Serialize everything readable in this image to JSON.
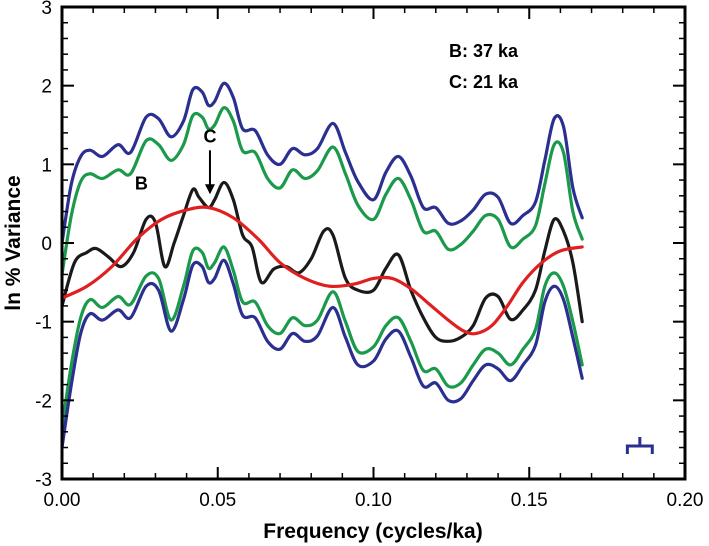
{
  "chart_data": {
    "type": "line",
    "xlabel": "Frequency (cycles/ka)",
    "ylabel": "ln % Variance",
    "xlim": [
      0.0,
      0.2
    ],
    "ylim": [
      -3,
      3
    ],
    "x_ticks": [
      "0.00",
      "0.05",
      "0.10",
      "0.15",
      "0.20"
    ],
    "y_ticks": [
      "-3",
      "-2",
      "-1",
      "0",
      "1",
      "2",
      "3"
    ],
    "grid": false,
    "legend": [
      "B: 37 ka",
      "C: 21 ka"
    ],
    "annotations": [
      {
        "text": "B",
        "x": 0.0255,
        "y": 0.68
      },
      {
        "text": "C",
        "x": 0.0475,
        "y": 1.28
      }
    ],
    "colors": {
      "spectrum": "#1a1a1a",
      "inner_band": "#1a9a4a",
      "outer_band": "#2b2f8f",
      "smooth": "#e02020"
    },
    "series": [
      {
        "role": "outer-upper",
        "x": [
          0.0,
          0.003,
          0.006,
          0.009,
          0.013,
          0.018,
          0.022,
          0.027,
          0.031,
          0.035,
          0.039,
          0.042,
          0.045,
          0.047,
          0.049,
          0.052,
          0.055,
          0.058,
          0.062,
          0.066,
          0.07,
          0.074,
          0.078,
          0.082,
          0.087,
          0.091,
          0.095,
          0.1,
          0.104,
          0.108,
          0.112,
          0.116,
          0.12,
          0.124,
          0.128,
          0.132,
          0.136,
          0.14,
          0.144,
          0.148,
          0.152,
          0.155,
          0.158,
          0.161,
          0.164,
          0.167
        ],
        "y": [
          0.0,
          0.75,
          1.1,
          1.18,
          1.1,
          1.25,
          1.15,
          1.6,
          1.58,
          1.35,
          1.55,
          1.95,
          1.92,
          1.75,
          1.8,
          2.03,
          1.85,
          1.45,
          1.43,
          1.12,
          1.0,
          1.2,
          1.12,
          1.2,
          1.52,
          1.15,
          0.78,
          0.55,
          0.9,
          1.1,
          0.85,
          0.45,
          0.45,
          0.25,
          0.28,
          0.42,
          0.62,
          0.58,
          0.25,
          0.35,
          0.52,
          1.05,
          1.58,
          1.48,
          0.7,
          0.32
        ]
      },
      {
        "role": "inner-upper",
        "x": [
          0.0,
          0.003,
          0.006,
          0.009,
          0.013,
          0.018,
          0.022,
          0.027,
          0.031,
          0.035,
          0.039,
          0.042,
          0.045,
          0.047,
          0.049,
          0.052,
          0.055,
          0.058,
          0.062,
          0.066,
          0.07,
          0.074,
          0.078,
          0.082,
          0.087,
          0.091,
          0.095,
          0.1,
          0.104,
          0.108,
          0.112,
          0.116,
          0.12,
          0.124,
          0.128,
          0.132,
          0.136,
          0.14,
          0.144,
          0.148,
          0.152,
          0.155,
          0.158,
          0.161,
          0.164,
          0.167
        ],
        "y": [
          -0.4,
          0.35,
          0.78,
          0.88,
          0.82,
          0.93,
          0.88,
          1.3,
          1.25,
          1.05,
          1.25,
          1.62,
          1.6,
          1.45,
          1.5,
          1.72,
          1.55,
          1.17,
          1.15,
          0.82,
          0.7,
          0.93,
          0.82,
          0.92,
          1.22,
          0.88,
          0.48,
          0.3,
          0.62,
          0.82,
          0.55,
          0.15,
          0.15,
          -0.08,
          -0.02,
          0.15,
          0.35,
          0.3,
          -0.05,
          0.05,
          0.22,
          0.75,
          1.25,
          1.15,
          0.4,
          0.05
        ]
      },
      {
        "role": "spectrum",
        "x": [
          0.0,
          0.004,
          0.008,
          0.011,
          0.015,
          0.019,
          0.023,
          0.027,
          0.03,
          0.033,
          0.036,
          0.039,
          0.042,
          0.044,
          0.047,
          0.049,
          0.052,
          0.055,
          0.058,
          0.061,
          0.064,
          0.068,
          0.072,
          0.076,
          0.08,
          0.084,
          0.087,
          0.091,
          0.095,
          0.1,
          0.104,
          0.108,
          0.112,
          0.116,
          0.12,
          0.124,
          0.128,
          0.132,
          0.136,
          0.14,
          0.144,
          0.148,
          0.152,
          0.155,
          0.158,
          0.161,
          0.164,
          0.167
        ],
        "y": [
          -0.8,
          -0.25,
          -0.12,
          -0.07,
          -0.18,
          -0.3,
          -0.12,
          0.3,
          0.26,
          -0.3,
          0.0,
          0.35,
          0.68,
          0.58,
          0.45,
          0.55,
          0.77,
          0.55,
          0.1,
          -0.05,
          -0.5,
          -0.33,
          -0.3,
          -0.38,
          -0.2,
          0.15,
          0.1,
          -0.45,
          -0.6,
          -0.6,
          -0.32,
          -0.15,
          -0.6,
          -0.95,
          -1.2,
          -1.25,
          -1.2,
          -1.05,
          -0.7,
          -0.68,
          -0.97,
          -0.85,
          -0.6,
          -0.1,
          0.3,
          0.15,
          -0.25,
          -1.0
        ]
      },
      {
        "role": "smooth",
        "x": [
          0.0,
          0.008,
          0.016,
          0.024,
          0.032,
          0.04,
          0.047,
          0.055,
          0.063,
          0.07,
          0.078,
          0.086,
          0.094,
          0.1,
          0.106,
          0.112,
          0.118,
          0.124,
          0.129,
          0.133,
          0.138,
          0.143,
          0.148,
          0.154,
          0.16,
          0.167
        ],
        "y": [
          -0.7,
          -0.55,
          -0.3,
          0.05,
          0.3,
          0.42,
          0.45,
          0.32,
          0.05,
          -0.25,
          -0.45,
          -0.55,
          -0.52,
          -0.45,
          -0.45,
          -0.58,
          -0.78,
          -0.98,
          -1.12,
          -1.15,
          -1.05,
          -0.8,
          -0.5,
          -0.25,
          -0.1,
          -0.05
        ]
      },
      {
        "role": "inner-lower",
        "x": [
          0.0,
          0.003,
          0.006,
          0.009,
          0.013,
          0.018,
          0.022,
          0.027,
          0.031,
          0.035,
          0.039,
          0.042,
          0.045,
          0.047,
          0.049,
          0.052,
          0.055,
          0.058,
          0.062,
          0.066,
          0.07,
          0.074,
          0.078,
          0.082,
          0.087,
          0.091,
          0.095,
          0.1,
          0.104,
          0.108,
          0.112,
          0.116,
          0.12,
          0.124,
          0.128,
          0.132,
          0.136,
          0.14,
          0.144,
          0.148,
          0.152,
          0.155,
          0.158,
          0.161,
          0.164,
          0.167
        ],
        "y": [
          -2.35,
          -1.55,
          -0.95,
          -0.72,
          -0.82,
          -0.68,
          -0.78,
          -0.42,
          -0.45,
          -0.98,
          -0.55,
          -0.1,
          -0.12,
          -0.32,
          -0.25,
          -0.05,
          -0.35,
          -0.75,
          -0.75,
          -1.05,
          -1.15,
          -0.95,
          -1.05,
          -0.98,
          -0.62,
          -1.0,
          -1.38,
          -1.32,
          -1.05,
          -0.95,
          -1.25,
          -1.62,
          -1.6,
          -1.82,
          -1.78,
          -1.55,
          -1.35,
          -1.4,
          -1.55,
          -1.35,
          -1.1,
          -0.55,
          -0.38,
          -0.55,
          -1.0,
          -1.55
        ]
      },
      {
        "role": "outer-lower",
        "x": [
          0.0,
          0.003,
          0.006,
          0.009,
          0.013,
          0.018,
          0.022,
          0.027,
          0.031,
          0.035,
          0.039,
          0.042,
          0.045,
          0.047,
          0.049,
          0.052,
          0.055,
          0.058,
          0.062,
          0.066,
          0.07,
          0.074,
          0.078,
          0.082,
          0.087,
          0.091,
          0.095,
          0.1,
          0.104,
          0.108,
          0.112,
          0.116,
          0.12,
          0.124,
          0.128,
          0.132,
          0.136,
          0.14,
          0.144,
          0.148,
          0.152,
          0.155,
          0.158,
          0.161,
          0.164,
          0.167
        ],
        "y": [
          -2.6,
          -1.8,
          -1.15,
          -0.9,
          -0.98,
          -0.85,
          -0.95,
          -0.55,
          -0.6,
          -1.12,
          -0.72,
          -0.28,
          -0.3,
          -0.5,
          -0.45,
          -0.22,
          -0.52,
          -0.92,
          -0.95,
          -1.25,
          -1.35,
          -1.15,
          -1.25,
          -1.18,
          -0.82,
          -1.2,
          -1.55,
          -1.5,
          -1.22,
          -1.12,
          -1.45,
          -1.82,
          -1.78,
          -2.0,
          -1.98,
          -1.75,
          -1.55,
          -1.6,
          -1.75,
          -1.55,
          -1.3,
          -0.75,
          -0.55,
          -0.72,
          -1.2,
          -1.72
        ]
      }
    ]
  },
  "extras": {
    "bandwidth_marker": {
      "x_center": 0.1855,
      "half_width": 0.004,
      "y": -2.58
    }
  }
}
